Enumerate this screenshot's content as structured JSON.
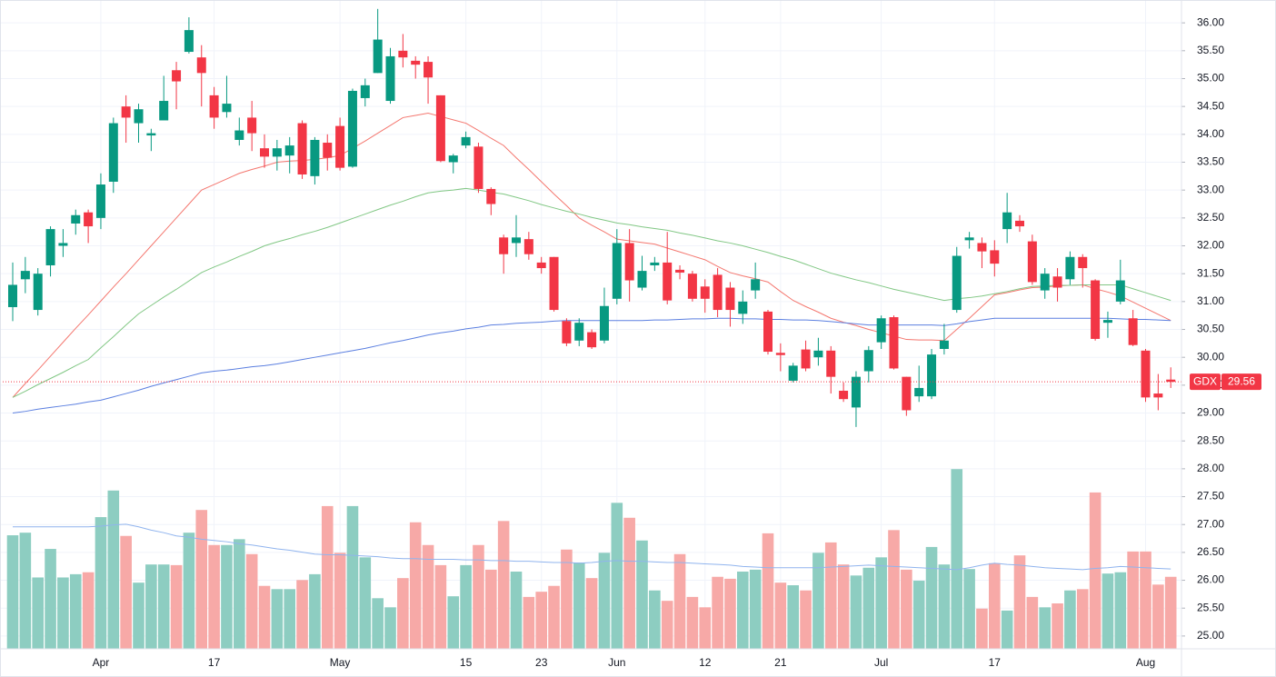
{
  "chart_data": {
    "type": "candlestick",
    "categories": [
      null,
      null,
      null,
      null,
      null,
      null,
      null,
      "Apr",
      null,
      null,
      null,
      null,
      null,
      null,
      null,
      null,
      "17",
      null,
      null,
      null,
      null,
      null,
      null,
      null,
      null,
      null,
      "May",
      null,
      null,
      null,
      null,
      null,
      null,
      null,
      null,
      null,
      "15",
      null,
      null,
      null,
      null,
      null,
      "23",
      null,
      null,
      null,
      null,
      null,
      "Jun",
      null,
      null,
      null,
      null,
      null,
      null,
      "12",
      null,
      null,
      null,
      null,
      null,
      "21",
      null,
      null,
      null,
      null,
      null,
      null,
      null,
      "Jul",
      null,
      null,
      null,
      null,
      null,
      null,
      null,
      null,
      "17",
      null,
      null,
      null,
      null,
      null,
      null,
      null,
      null,
      null,
      null,
      null,
      "Aug",
      null,
      null
    ],
    "open": [
      30.9,
      31.4,
      30.85,
      31.65,
      32.0,
      32.4,
      32.6,
      32.5,
      33.15,
      34.5,
      34.2,
      33.98,
      34.25,
      35.15,
      35.48,
      35.38,
      34.7,
      34.4,
      33.9,
      34.3,
      33.75,
      33.6,
      33.62,
      34.2,
      33.25,
      33.85,
      34.15,
      33.42,
      34.65,
      35.1,
      34.6,
      35.5,
      35.32,
      35.3,
      34.7,
      33.5,
      33.8,
      33.78,
      33.02,
      32.15,
      32.05,
      32.12,
      31.7,
      31.8,
      30.65,
      30.3,
      30.45,
      30.3,
      31.05,
      32.05,
      31.25,
      31.65,
      31.7,
      31.57,
      31.5,
      31.27,
      31.48,
      31.25,
      30.78,
      31.2,
      30.82,
      30.08,
      29.58,
      30.14,
      30.0,
      30.12,
      29.4,
      29.1,
      29.75,
      30.27,
      30.72,
      29.65,
      29.3,
      29.3,
      30.15,
      30.85,
      32.1,
      32.05,
      31.92,
      32.3,
      32.45,
      32.08,
      31.2,
      31.45,
      31.4,
      31.8,
      31.38,
      30.62,
      31.0,
      30.7,
      30.12,
      29.35,
      29.6
    ],
    "high": [
      31.7,
      31.8,
      31.6,
      32.35,
      32.3,
      32.65,
      32.65,
      33.3,
      34.3,
      34.7,
      34.55,
      34.1,
      35.05,
      35.3,
      36.1,
      35.6,
      34.85,
      35.05,
      34.3,
      34.6,
      34.0,
      33.9,
      33.95,
      34.25,
      33.95,
      34.0,
      34.3,
      34.82,
      35.0,
      36.25,
      35.55,
      35.8,
      35.4,
      35.4,
      34.7,
      33.65,
      34.05,
      33.85,
      33.05,
      32.2,
      32.55,
      32.25,
      31.8,
      31.8,
      30.7,
      30.7,
      30.5,
      31.25,
      32.3,
      32.3,
      31.82,
      31.8,
      32.25,
      31.65,
      31.55,
      31.4,
      31.6,
      31.35,
      31.2,
      31.7,
      30.85,
      30.25,
      29.9,
      30.3,
      30.35,
      30.2,
      29.55,
      29.75,
      30.2,
      30.75,
      30.75,
      29.65,
      29.85,
      30.15,
      30.6,
      31.98,
      32.25,
      32.15,
      32.1,
      32.95,
      32.55,
      32.2,
      31.6,
      31.6,
      31.9,
      31.85,
      31.4,
      30.82,
      31.75,
      30.85,
      30.15,
      29.7,
      29.82
    ],
    "low": [
      30.65,
      31.15,
      30.75,
      31.45,
      31.8,
      32.2,
      32.05,
      32.3,
      32.95,
      33.85,
      33.85,
      33.7,
      34.25,
      34.45,
      35.45,
      34.5,
      34.1,
      34.3,
      33.8,
      33.7,
      33.4,
      33.35,
      33.3,
      33.2,
      33.1,
      33.35,
      33.35,
      33.4,
      34.5,
      35.1,
      34.55,
      35.2,
      35.0,
      34.55,
      33.5,
      33.3,
      33.75,
      32.95,
      32.55,
      31.5,
      31.8,
      31.75,
      31.5,
      30.82,
      30.2,
      30.2,
      30.15,
      30.25,
      30.95,
      31.0,
      31.2,
      31.55,
      30.95,
      31.4,
      31.0,
      30.8,
      30.72,
      30.55,
      30.6,
      31.05,
      30.05,
      29.75,
      29.55,
      29.75,
      29.85,
      29.35,
      29.2,
      28.75,
      29.55,
      30.15,
      29.78,
      28.95,
      29.2,
      29.25,
      30.05,
      30.8,
      31.95,
      31.6,
      31.45,
      32.05,
      32.25,
      31.3,
      31.05,
      31.0,
      31.3,
      31.25,
      30.3,
      30.35,
      30.95,
      30.2,
      29.2,
      29.05,
      29.45
    ],
    "close": [
      31.3,
      31.55,
      31.5,
      32.3,
      32.05,
      32.55,
      32.35,
      33.1,
      34.2,
      34.3,
      34.45,
      34.02,
      34.6,
      34.95,
      35.87,
      35.1,
      34.3,
      34.55,
      34.07,
      34.02,
      33.6,
      33.75,
      33.8,
      33.28,
      33.9,
      33.58,
      33.4,
      34.78,
      34.88,
      35.7,
      35.4,
      35.38,
      35.25,
      35.02,
      33.52,
      33.62,
      33.95,
      33.02,
      32.75,
      31.85,
      32.15,
      31.85,
      31.6,
      30.85,
      30.25,
      30.62,
      30.18,
      30.92,
      32.05,
      31.38,
      31.55,
      31.7,
      31.02,
      31.52,
      31.05,
      31.05,
      30.85,
      30.85,
      31.0,
      31.4,
      30.1,
      30.04,
      29.85,
      29.8,
      30.12,
      29.65,
      29.25,
      29.65,
      30.13,
      30.7,
      29.8,
      29.05,
      29.45,
      30.05,
      30.3,
      31.82,
      32.15,
      31.9,
      31.68,
      32.6,
      32.35,
      31.35,
      31.5,
      31.25,
      31.8,
      31.6,
      30.33,
      30.67,
      31.38,
      30.22,
      29.28,
      29.28,
      29.56
    ],
    "volume": [
      17.5,
      17.9,
      11.0,
      15.4,
      11.0,
      11.5,
      11.8,
      20.3,
      24.4,
      17.4,
      10.2,
      13.0,
      13.0,
      12.9,
      17.9,
      21.4,
      16.0,
      16.0,
      16.9,
      14.6,
      9.7,
      9.2,
      9.2,
      10.6,
      11.5,
      22.0,
      14.8,
      22.0,
      14.1,
      7.8,
      6.4,
      10.9,
      19.5,
      16.0,
      12.9,
      8.1,
      12.9,
      16.0,
      12.2,
      19.7,
      11.9,
      8.0,
      8.8,
      9.7,
      15.3,
      13.3,
      10.9,
      14.8,
      22.5,
      20.2,
      16.7,
      9.0,
      7.4,
      14.6,
      8.0,
      6.4,
      11.1,
      10.8,
      11.9,
      12.2,
      17.8,
      10.2,
      9.8,
      9.0,
      14.8,
      16.4,
      13.0,
      11.3,
      12.5,
      14.1,
      18.3,
      12.2,
      10.5,
      15.7,
      13.0,
      27.7,
      12.3,
      6.2,
      13.2,
      5.9,
      14.4,
      8.0,
      6.4,
      7.0,
      9.0,
      9.2,
      24.1,
      11.6,
      11.8,
      15.0,
      15.0,
      9.9,
      11.1
    ],
    "moving_averages": [
      {
        "color": "#f4776f",
        "values": [
          29.28,
          29.53,
          29.77,
          30.02,
          30.27,
          30.52,
          30.76,
          31.01,
          31.26,
          31.5,
          31.75,
          32.0,
          32.25,
          32.5,
          32.75,
          33.0,
          33.1,
          33.2,
          33.3,
          33.37,
          33.43,
          33.5,
          33.52,
          33.53,
          33.55,
          33.58,
          33.62,
          33.75,
          33.88,
          34.02,
          34.16,
          34.3,
          34.34,
          34.38,
          34.32,
          34.26,
          34.2,
          34.07,
          33.93,
          33.8,
          33.58,
          33.37,
          33.15,
          32.93,
          32.72,
          32.5,
          32.37,
          32.25,
          32.12,
          32.09,
          32.06,
          32.03,
          31.96,
          31.89,
          31.82,
          31.75,
          31.63,
          31.52,
          31.46,
          31.41,
          31.35,
          31.18,
          31.02,
          30.91,
          30.81,
          30.7,
          30.63,
          30.57,
          30.5,
          30.44,
          30.38,
          30.32,
          30.31,
          30.31,
          30.3,
          30.5,
          30.7,
          30.91,
          31.12,
          31.16,
          31.21,
          31.25,
          31.26,
          31.28,
          31.29,
          31.3,
          31.23,
          31.17,
          31.1,
          30.99,
          30.88,
          30.77,
          30.66
        ]
      },
      {
        "color": "#81c784",
        "values": [
          29.28,
          29.39,
          29.51,
          29.62,
          29.73,
          29.85,
          29.96,
          30.17,
          30.37,
          30.58,
          30.78,
          30.93,
          31.08,
          31.22,
          31.37,
          31.52,
          31.62,
          31.71,
          31.81,
          31.9,
          32.0,
          32.07,
          32.13,
          32.2,
          32.26,
          32.33,
          32.41,
          32.49,
          32.57,
          32.65,
          32.73,
          32.8,
          32.88,
          32.95,
          32.98,
          33.0,
          33.03,
          33.0,
          32.96,
          32.93,
          32.87,
          32.81,
          32.74,
          32.68,
          32.62,
          32.57,
          32.51,
          32.46,
          32.41,
          32.38,
          32.34,
          32.31,
          32.28,
          32.23,
          32.19,
          32.14,
          32.09,
          32.05,
          32.0,
          31.94,
          31.88,
          31.81,
          31.75,
          31.67,
          31.59,
          31.51,
          31.45,
          31.39,
          31.34,
          31.28,
          31.22,
          31.17,
          31.12,
          31.07,
          31.02,
          31.05,
          31.07,
          31.1,
          31.14,
          31.18,
          31.23,
          31.27,
          31.28,
          31.29,
          31.29,
          31.3,
          31.3,
          31.3,
          31.3,
          31.23,
          31.16,
          31.09,
          31.02
        ]
      },
      {
        "color": "#5b7fe0",
        "values": [
          29.0,
          29.03,
          29.07,
          29.1,
          29.13,
          29.16,
          29.2,
          29.23,
          29.29,
          29.35,
          29.41,
          29.48,
          29.54,
          29.6,
          29.66,
          29.72,
          29.75,
          29.77,
          29.8,
          29.83,
          29.85,
          29.88,
          29.92,
          29.96,
          30.0,
          30.04,
          30.08,
          30.12,
          30.16,
          30.21,
          30.26,
          30.3,
          30.35,
          30.4,
          30.44,
          30.47,
          30.51,
          30.54,
          30.58,
          30.59,
          30.61,
          30.62,
          30.63,
          30.65,
          30.66,
          30.66,
          30.66,
          30.66,
          30.66,
          30.66,
          30.66,
          30.67,
          30.67,
          30.68,
          30.69,
          30.69,
          30.7,
          30.7,
          30.69,
          30.69,
          30.68,
          30.68,
          30.67,
          30.67,
          30.66,
          30.64,
          30.62,
          30.6,
          30.58,
          30.58,
          30.58,
          30.58,
          30.58,
          30.58,
          30.57,
          30.6,
          30.64,
          30.67,
          30.7,
          30.7,
          30.7,
          30.7,
          30.7,
          30.7,
          30.7,
          30.7,
          30.7,
          30.7,
          30.69,
          30.68,
          30.68,
          30.67,
          30.66
        ]
      }
    ],
    "volume_ma": {
      "color": "#90b4ee",
      "values": [
        18.8,
        18.8,
        18.8,
        18.8,
        18.8,
        18.8,
        18.8,
        18.9,
        19.1,
        19.2,
        18.8,
        18.3,
        17.9,
        17.4,
        17.2,
        16.9,
        16.7,
        16.5,
        16.2,
        16.0,
        15.7,
        15.4,
        15.2,
        14.9,
        14.6,
        14.5,
        14.5,
        14.4,
        14.3,
        14.2,
        14.0,
        13.9,
        13.9,
        13.8,
        13.8,
        13.8,
        13.7,
        13.7,
        13.6,
        13.6,
        13.5,
        13.5,
        13.4,
        13.3,
        13.3,
        13.2,
        13.3,
        13.5,
        13.6,
        13.5,
        13.5,
        13.4,
        13.3,
        13.3,
        13.2,
        13.1,
        13.0,
        12.9,
        12.7,
        12.6,
        12.5,
        12.5,
        12.5,
        12.5,
        12.5,
        12.6,
        12.7,
        12.8,
        12.9,
        12.8,
        12.7,
        12.6,
        12.5,
        12.4,
        12.3,
        12.2,
        12.5,
        12.9,
        13.2,
        13.0,
        12.9,
        12.7,
        12.5,
        12.4,
        12.3,
        12.2,
        12.4,
        12.5,
        12.7,
        12.6,
        12.5,
        12.4,
        12.3
      ]
    },
    "up_color": "#089981",
    "down_color": "#f23645",
    "volume_up_color": "#8dcdc1",
    "volume_down_color": "#f7a9a7",
    "ylim": [
      24.77,
      36.41
    ],
    "yticks": [
      {
        "value": 25,
        "label": "25.00"
      },
      {
        "value": 25.5,
        "label": "25.50"
      },
      {
        "value": 26,
        "label": "26.00"
      },
      {
        "value": 26.5,
        "label": "26.50"
      },
      {
        "value": 27,
        "label": "27.00"
      },
      {
        "value": 27.5,
        "label": "27.50"
      },
      {
        "value": 28,
        "label": "28.00"
      },
      {
        "value": 28.5,
        "label": "28.50"
      },
      {
        "value": 29,
        "label": "29.00"
      },
      {
        "value": 29.5,
        "label": "29.50"
      },
      {
        "value": 30,
        "label": "30.00"
      },
      {
        "value": 30.5,
        "label": "30.50"
      },
      {
        "value": 31,
        "label": "31.00"
      },
      {
        "value": 31.5,
        "label": "31.50"
      },
      {
        "value": 32,
        "label": "32.00"
      },
      {
        "value": 32.5,
        "label": "32.50"
      },
      {
        "value": 33,
        "label": "33.00"
      },
      {
        "value": 33.5,
        "label": "33.50"
      },
      {
        "value": 34,
        "label": "34.00"
      },
      {
        "value": 34.5,
        "label": "34.50"
      },
      {
        "value": 35,
        "label": "35.00"
      },
      {
        "value": 35.5,
        "label": "35.50"
      },
      {
        "value": 36,
        "label": "36.00"
      }
    ],
    "y2lim": [
      0,
      100
    ],
    "grid": true,
    "last_price": {
      "symbol": "GDX",
      "value": 29.56,
      "label": "29.56"
    }
  }
}
